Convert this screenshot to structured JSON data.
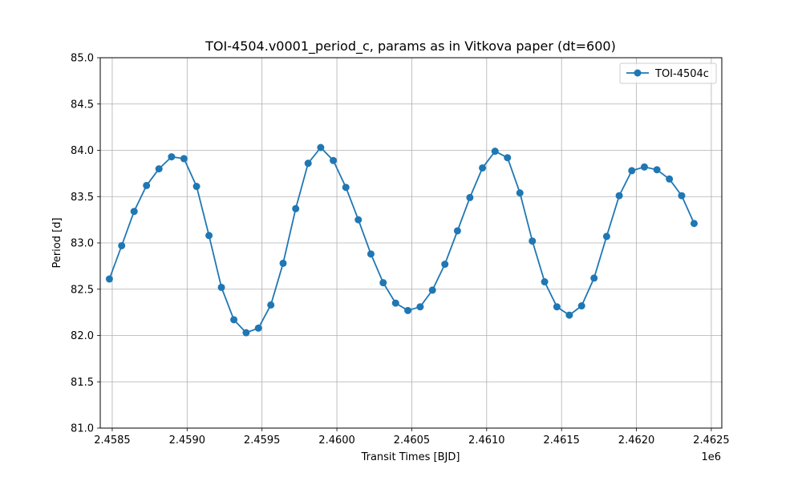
{
  "chart_data": {
    "type": "line",
    "title": "TOI-4504.v0001_period_c, params as in Vitkova paper (dt=600)",
    "xlabel": "Transit Times [BJD]",
    "ylabel": "Period [d]",
    "x_offset_label": "1e6",
    "xlim": [
      2458420,
      2462570
    ],
    "ylim": [
      81.0,
      85.0
    ],
    "x_ticks": [
      2458500,
      2459000,
      2459500,
      2460000,
      2460500,
      2461000,
      2461500,
      2462000,
      2462500
    ],
    "x_tick_labels": [
      "2.4585",
      "2.4590",
      "2.4595",
      "2.4600",
      "2.4605",
      "2.4610",
      "2.4615",
      "2.4620",
      "2.4625"
    ],
    "y_ticks": [
      81.0,
      81.5,
      82.0,
      82.5,
      83.0,
      83.5,
      84.0,
      84.5,
      85.0
    ],
    "y_tick_labels": [
      "81.0",
      "81.5",
      "82.0",
      "82.5",
      "83.0",
      "83.5",
      "84.0",
      "84.5",
      "85.0"
    ],
    "grid": true,
    "legend_position": "upper right",
    "series": [
      {
        "name": "TOI-4504c",
        "color": "#1f77b4",
        "marker": "circle",
        "x": [
          2458481,
          2458563,
          2458646,
          2458729,
          2458812,
          2458896,
          2458979,
          2459063,
          2459146,
          2459229,
          2459312,
          2459394,
          2459476,
          2459559,
          2459641,
          2459725,
          2459808,
          2459892,
          2459976,
          2460060,
          2460143,
          2460227,
          2460309,
          2460392,
          2460474,
          2460556,
          2460638,
          2460721,
          2460805,
          2460888,
          2460972,
          2461056,
          2461139,
          2461222,
          2461305,
          2461387,
          2461469,
          2461552,
          2461634,
          2461717,
          2461801,
          2461885,
          2461969,
          2462053,
          2462137,
          2462220,
          2462302,
          2462385
        ],
        "y": [
          82.61,
          82.97,
          83.34,
          83.62,
          83.8,
          83.93,
          83.91,
          83.61,
          83.08,
          82.52,
          82.17,
          82.03,
          82.08,
          82.33,
          82.78,
          83.37,
          83.86,
          84.03,
          83.89,
          83.6,
          83.25,
          82.88,
          82.57,
          82.35,
          82.27,
          82.31,
          82.49,
          82.77,
          83.13,
          83.49,
          83.81,
          83.99,
          83.92,
          83.54,
          83.02,
          82.58,
          82.31,
          82.22,
          82.32,
          82.62,
          83.07,
          83.51,
          83.78,
          83.82,
          83.79,
          83.69,
          83.51,
          83.21
        ]
      }
    ]
  }
}
